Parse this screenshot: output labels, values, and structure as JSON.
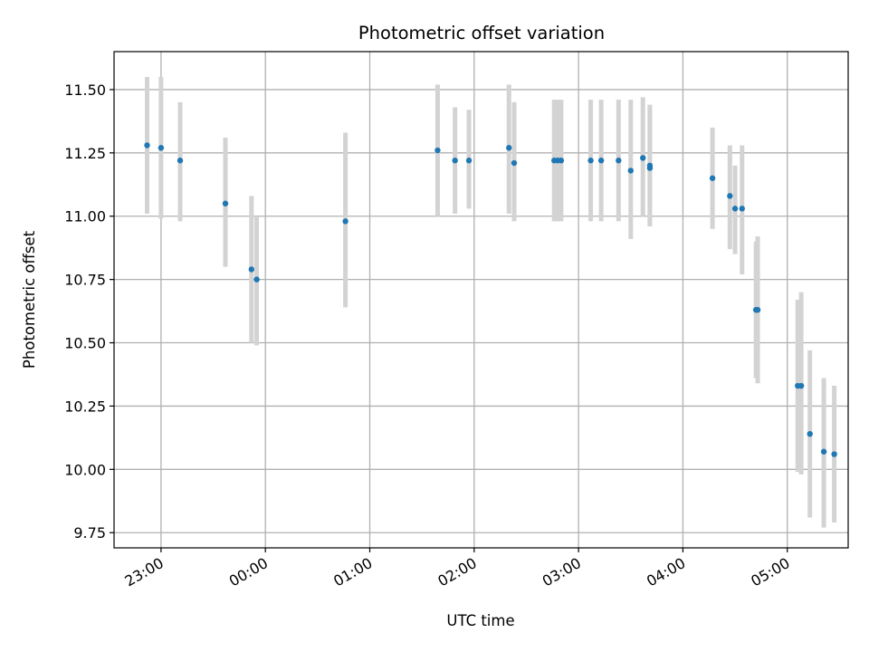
{
  "chart_data": {
    "type": "scatter",
    "title": "Photometric offset variation",
    "xlabel": "UTC time",
    "ylabel": "Photometric offset",
    "grid": true,
    "x_unit": "UTC time (HH:MM, evening through next morning)",
    "xlim": [
      "22:33",
      "05:35"
    ],
    "ylim": [
      9.69,
      11.65
    ],
    "x_ticks": [
      "23:00",
      "00:00",
      "01:00",
      "02:00",
      "03:00",
      "04:00",
      "05:00"
    ],
    "y_ticks": [
      "9.75",
      "10.00",
      "10.25",
      "10.50",
      "10.75",
      "11.00",
      "11.25",
      "11.50"
    ],
    "colors": {
      "point": "#1f77b4",
      "errorbar": "#d3d3d3",
      "grid": "#b0b0b0"
    },
    "series": [
      {
        "points": [
          {
            "t": "22:52",
            "y": 11.28,
            "err_low": 11.01,
            "err_high": 11.55
          },
          {
            "t": "23:00",
            "y": 11.27,
            "err_low": 10.99,
            "err_high": 11.55
          },
          {
            "t": "23:11",
            "y": 11.22,
            "err_low": 10.98,
            "err_high": 11.45
          },
          {
            "t": "23:37",
            "y": 11.05,
            "err_low": 10.8,
            "err_high": 11.31
          },
          {
            "t": "23:52",
            "y": 10.79,
            "err_low": 10.5,
            "err_high": 11.08
          },
          {
            "t": "23:55",
            "y": 10.75,
            "err_low": 10.49,
            "err_high": 11.0
          },
          {
            "t": "00:46",
            "y": 10.98,
            "err_low": 10.64,
            "err_high": 11.33
          },
          {
            "t": "01:39",
            "y": 11.26,
            "err_low": 11.0,
            "err_high": 11.52
          },
          {
            "t": "01:49",
            "y": 11.22,
            "err_low": 11.01,
            "err_high": 11.43
          },
          {
            "t": "01:57",
            "y": 11.22,
            "err_low": 11.03,
            "err_high": 11.42
          },
          {
            "t": "02:20",
            "y": 11.27,
            "err_low": 11.01,
            "err_high": 11.52
          },
          {
            "t": "02:23",
            "y": 11.21,
            "err_low": 10.98,
            "err_high": 11.45
          },
          {
            "t": "02:46",
            "y": 11.22,
            "err_low": 10.98,
            "err_high": 11.46
          },
          {
            "t": "02:48",
            "y": 11.22,
            "err_low": 10.98,
            "err_high": 11.46
          },
          {
            "t": "02:50",
            "y": 11.22,
            "err_low": 10.98,
            "err_high": 11.46
          },
          {
            "t": "03:07",
            "y": 11.22,
            "err_low": 10.98,
            "err_high": 11.46
          },
          {
            "t": "03:13",
            "y": 11.22,
            "err_low": 10.98,
            "err_high": 11.46
          },
          {
            "t": "03:23",
            "y": 11.22,
            "err_low": 10.98,
            "err_high": 11.46
          },
          {
            "t": "03:30",
            "y": 11.18,
            "err_low": 10.91,
            "err_high": 11.46
          },
          {
            "t": "03:37",
            "y": 11.23,
            "err_low": 11.0,
            "err_high": 11.47
          },
          {
            "t": "03:41",
            "y": 11.19,
            "err_low": 10.96,
            "err_high": 11.44
          },
          {
            "t": "03:41",
            "y": 11.2,
            "err_low": 10.96,
            "err_high": 11.44
          },
          {
            "t": "04:17",
            "y": 11.15,
            "err_low": 10.95,
            "err_high": 11.35
          },
          {
            "t": "04:27",
            "y": 11.08,
            "err_low": 10.87,
            "err_high": 11.28
          },
          {
            "t": "04:30",
            "y": 11.03,
            "err_low": 10.85,
            "err_high": 11.2
          },
          {
            "t": "04:34",
            "y": 11.03,
            "err_low": 10.77,
            "err_high": 11.28
          },
          {
            "t": "04:42",
            "y": 10.63,
            "err_low": 10.36,
            "err_high": 10.9
          },
          {
            "t": "04:43",
            "y": 10.63,
            "err_low": 10.34,
            "err_high": 10.92
          },
          {
            "t": "05:06",
            "y": 10.33,
            "err_low": 9.99,
            "err_high": 10.67
          },
          {
            "t": "05:08",
            "y": 10.33,
            "err_low": 9.98,
            "err_high": 10.7
          },
          {
            "t": "05:13",
            "y": 10.14,
            "err_low": 9.81,
            "err_high": 10.47
          },
          {
            "t": "05:21",
            "y": 10.07,
            "err_low": 9.77,
            "err_high": 10.36
          },
          {
            "t": "05:27",
            "y": 10.06,
            "err_low": 9.79,
            "err_high": 10.33
          }
        ]
      }
    ]
  }
}
